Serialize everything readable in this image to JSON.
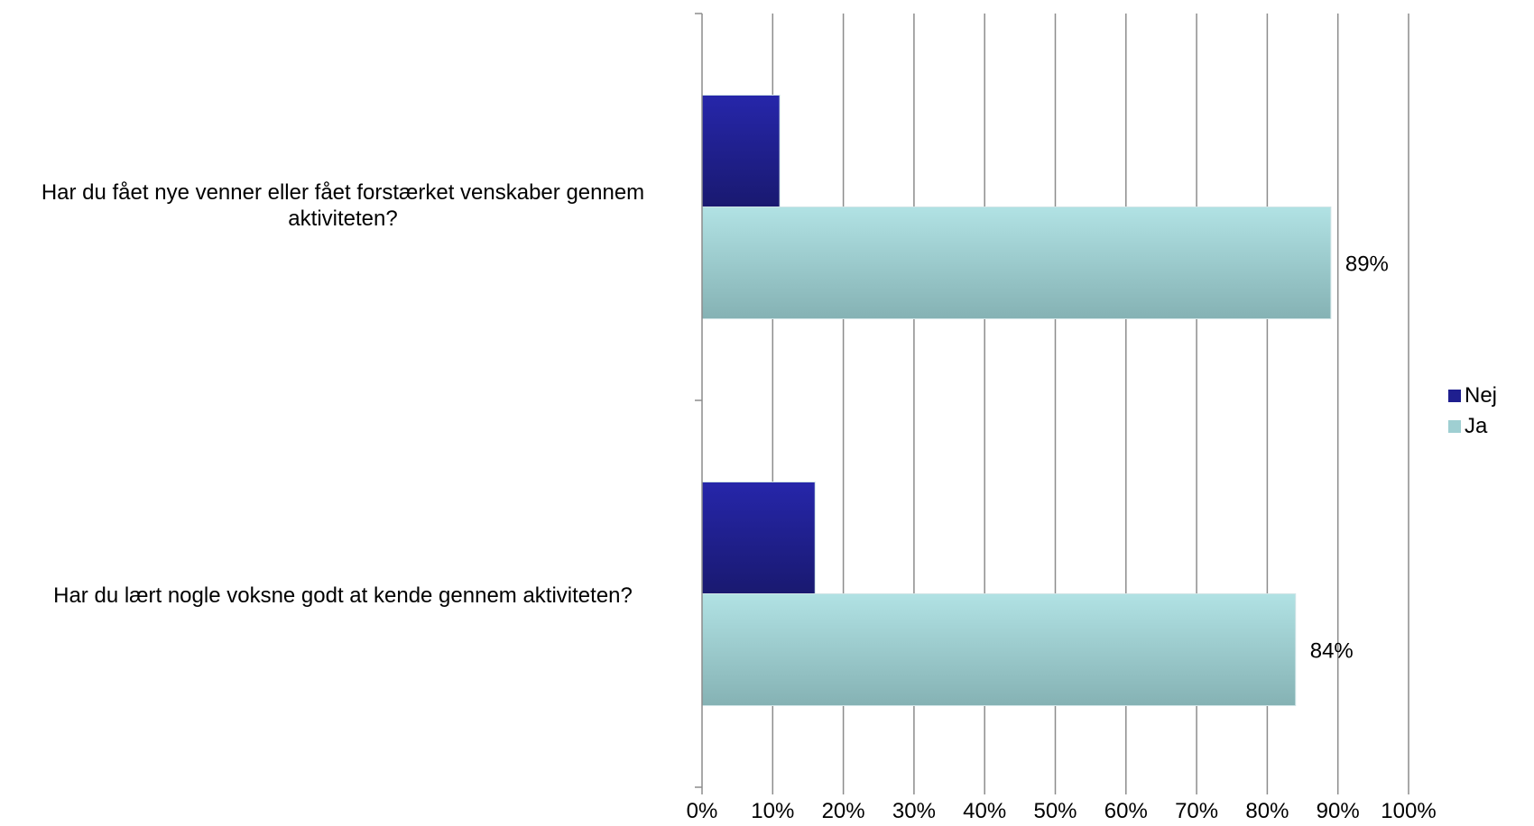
{
  "chart_data": {
    "type": "bar",
    "orientation": "horizontal",
    "categories": [
      "Har du fået nye venner eller fået forstærket venskaber gennem aktiviteten?",
      "Har du lært nogle voksne godt at kende gennem aktiviteten?"
    ],
    "series": [
      {
        "name": "Nej",
        "values": [
          11,
          16
        ],
        "color": "#1f1f8f",
        "labels": [
          "",
          ""
        ]
      },
      {
        "name": "Ja",
        "values": [
          89,
          84
        ],
        "color": "#9fcfd2",
        "labels": [
          "89%",
          "84%"
        ]
      }
    ],
    "x_ticks": [
      "0%",
      "10%",
      "20%",
      "30%",
      "40%",
      "50%",
      "60%",
      "70%",
      "80%",
      "90%",
      "100%"
    ],
    "xlim": [
      0,
      100
    ],
    "title": "",
    "xlabel": "",
    "ylabel": "",
    "grid": "vertical",
    "legend_position": "right"
  }
}
